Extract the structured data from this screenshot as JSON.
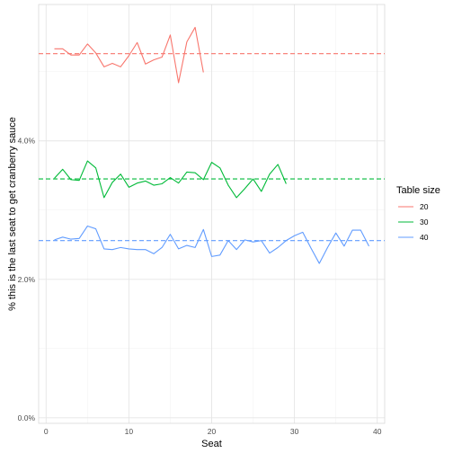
{
  "chart_data": {
    "type": "line",
    "title": "",
    "xlabel": "Seat",
    "ylabel": "% this is the last seat to get cranberry sauce",
    "xlim": [
      -0.9,
      40.9
    ],
    "ylim": [
      -0.08,
      5.97
    ],
    "x_ticks": [
      0,
      10,
      20,
      30,
      40
    ],
    "x_tick_labels": [
      "0",
      "10",
      "20",
      "30",
      "40"
    ],
    "y_ticks": [
      0,
      2,
      4
    ],
    "y_tick_labels": [
      "0.0%",
      "2.0%",
      "4.0%"
    ],
    "grid": true,
    "legend": {
      "title": "Table size",
      "position": "right"
    },
    "series": [
      {
        "name": "20",
        "color": "#F8766D",
        "reference": 5.26,
        "x": [
          1,
          2,
          3,
          4,
          5,
          6,
          7,
          8,
          9,
          10,
          11,
          12,
          13,
          14,
          15,
          16,
          17,
          18,
          19
        ],
        "values": [
          5.33,
          5.33,
          5.24,
          5.24,
          5.4,
          5.27,
          5.07,
          5.12,
          5.07,
          5.23,
          5.42,
          5.11,
          5.17,
          5.21,
          5.53,
          4.84,
          5.43,
          5.64,
          4.99
        ]
      },
      {
        "name": "30",
        "color": "#00BA38",
        "reference": 3.45,
        "x": [
          1,
          2,
          3,
          4,
          5,
          6,
          7,
          8,
          9,
          10,
          11,
          12,
          13,
          14,
          15,
          16,
          17,
          18,
          19,
          20,
          21,
          22,
          23,
          24,
          25,
          26,
          27,
          28,
          29
        ],
        "values": [
          3.46,
          3.59,
          3.44,
          3.43,
          3.71,
          3.61,
          3.18,
          3.4,
          3.52,
          3.33,
          3.39,
          3.42,
          3.36,
          3.38,
          3.47,
          3.39,
          3.55,
          3.54,
          3.44,
          3.69,
          3.61,
          3.36,
          3.18,
          3.31,
          3.45,
          3.27,
          3.52,
          3.66,
          3.38
        ]
      },
      {
        "name": "40",
        "color": "#619CFF",
        "reference": 2.56,
        "x": [
          1,
          2,
          3,
          4,
          5,
          6,
          7,
          8,
          9,
          10,
          11,
          12,
          13,
          14,
          15,
          16,
          17,
          18,
          19,
          20,
          21,
          22,
          23,
          24,
          25,
          26,
          27,
          28,
          29,
          30,
          31,
          32,
          33,
          34,
          35,
          36,
          37,
          38,
          39
        ],
        "values": [
          2.57,
          2.61,
          2.58,
          2.59,
          2.77,
          2.73,
          2.44,
          2.43,
          2.46,
          2.44,
          2.43,
          2.43,
          2.37,
          2.46,
          2.65,
          2.44,
          2.49,
          2.46,
          2.72,
          2.33,
          2.35,
          2.56,
          2.43,
          2.57,
          2.54,
          2.56,
          2.38,
          2.46,
          2.56,
          2.63,
          2.68,
          2.45,
          2.23,
          2.46,
          2.67,
          2.48,
          2.71,
          2.71,
          2.48
        ]
      }
    ]
  }
}
